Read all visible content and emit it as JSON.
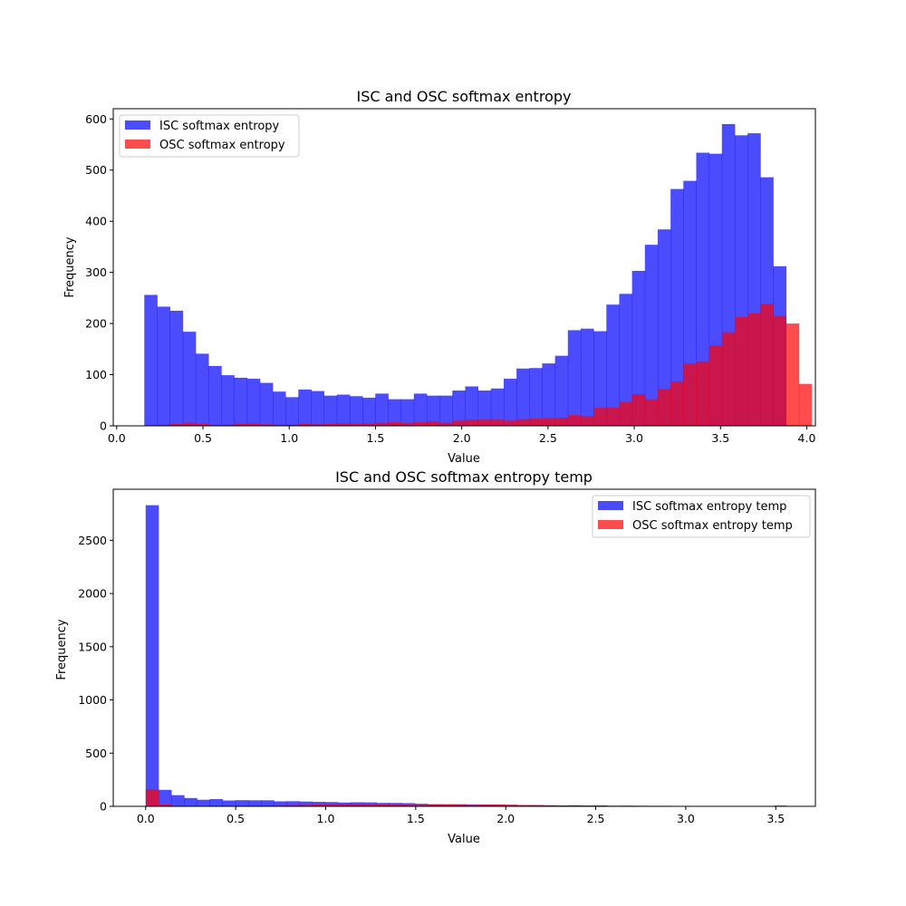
{
  "chart_data": [
    {
      "type": "histogram",
      "title": "ISC and OSC softmax entropy",
      "xlabel": "Value",
      "ylabel": "Frequency",
      "xlim": [
        -0.02,
        4.05
      ],
      "ylim": [
        0,
        620
      ],
      "xticks": [
        0.0,
        0.5,
        1.0,
        1.5,
        2.0,
        2.5,
        3.0,
        3.5,
        4.0
      ],
      "xtick_labels": [
        "0.0",
        "0.5",
        "1.0",
        "1.5",
        "2.0",
        "2.5",
        "3.0",
        "3.5",
        "4.0"
      ],
      "yticks": [
        0,
        100,
        200,
        300,
        400,
        500,
        600
      ],
      "ytick_labels": [
        "0",
        "100",
        "200",
        "300",
        "400",
        "500",
        "600"
      ],
      "bin_start": 0.16,
      "bin_width": 0.0744,
      "legend_position": "upper-left",
      "series": [
        {
          "name": "ISC softmax entropy",
          "color": "#0000ff",
          "alpha": 0.7,
          "values": [
            256,
            233,
            225,
            184,
            141,
            117,
            99,
            94,
            92,
            84,
            67,
            56,
            71,
            68,
            59,
            61,
            58,
            55,
            63,
            52,
            52,
            63,
            59,
            59,
            69,
            77,
            69,
            73,
            92,
            112,
            113,
            122,
            137,
            187,
            190,
            185,
            237,
            258,
            303,
            354,
            384,
            463,
            479,
            534,
            532,
            590,
            568,
            572,
            486,
            312
          ]
        },
        {
          "name": "OSC softmax entropy",
          "color": "#ff0000",
          "alpha": 0.7,
          "values": [
            0,
            2,
            4,
            6,
            4,
            2,
            2,
            4,
            5,
            3,
            2,
            2,
            4,
            3,
            4,
            5,
            4,
            5,
            6,
            7,
            6,
            7,
            9,
            6,
            10,
            12,
            13,
            13,
            10,
            13,
            14,
            15,
            16,
            21,
            19,
            35,
            36,
            47,
            62,
            52,
            72,
            87,
            122,
            126,
            157,
            183,
            213,
            220,
            238,
            215,
            200,
            82
          ]
        }
      ]
    },
    {
      "type": "histogram",
      "title": "ISC and OSC softmax entropy temp",
      "xlabel": "Value",
      "ylabel": "Frequency",
      "xlim": [
        -0.18,
        3.72
      ],
      "ylim": [
        0,
        2980
      ],
      "xticks": [
        0.0,
        0.5,
        1.0,
        1.5,
        2.0,
        2.5,
        3.0,
        3.5
      ],
      "xtick_labels": [
        "0.0",
        "0.5",
        "1.0",
        "1.5",
        "2.0",
        "2.5",
        "3.0",
        "3.5"
      ],
      "yticks": [
        0,
        500,
        1000,
        1500,
        2000,
        2500
      ],
      "ytick_labels": [
        "0",
        "500",
        "1000",
        "1500",
        "2000",
        "2500"
      ],
      "bin_start": 0.0,
      "bin_width": 0.0712,
      "legend_position": "upper-right",
      "series": [
        {
          "name": "ISC softmax entropy temp",
          "color": "#0000ff",
          "alpha": 0.7,
          "values": [
            2830,
            155,
            105,
            78,
            62,
            68,
            55,
            58,
            57,
            57,
            47,
            48,
            45,
            42,
            40,
            36,
            38,
            37,
            32,
            32,
            30,
            24,
            20,
            18,
            20,
            18,
            17,
            15,
            14,
            12,
            12,
            10,
            8,
            10,
            8,
            9,
            6,
            6,
            6,
            5,
            5,
            4,
            4,
            3,
            3,
            3,
            2,
            2,
            3,
            7
          ]
        },
        {
          "name": "OSC softmax entropy temp",
          "color": "#ff0000",
          "alpha": 0.7,
          "values": [
            160,
            18,
            8,
            5,
            5,
            4,
            4,
            6,
            7,
            8,
            10,
            12,
            14,
            18,
            20,
            22,
            20,
            19,
            18,
            16,
            15,
            14,
            18,
            20,
            16,
            14,
            16,
            18,
            15,
            12,
            12,
            10,
            9,
            8,
            7,
            6,
            5,
            6,
            4,
            4,
            3,
            3,
            2,
            2,
            2,
            2,
            2,
            1,
            1,
            1
          ]
        }
      ]
    }
  ]
}
